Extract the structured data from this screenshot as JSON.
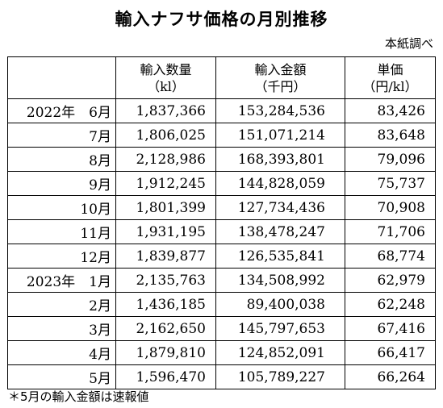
{
  "title": "輸入ナフサ価格の月別推移",
  "source": "本紙調べ",
  "columns": [
    {
      "name": "輸入数量",
      "unit": "（kl）"
    },
    {
      "name": "輸入金額",
      "unit": "（千円）"
    },
    {
      "name": "単価",
      "unit": "（円/kl）"
    }
  ],
  "rows": [
    {
      "period": "2022年　6月",
      "volume": "1,837,366",
      "amount": "153,284,536",
      "price": "83,426"
    },
    {
      "period": "7月",
      "volume": "1,806,025",
      "amount": "151,071,214",
      "price": "83,648"
    },
    {
      "period": "8月",
      "volume": "2,128,986",
      "amount": "168,393,801",
      "price": "79,096"
    },
    {
      "period": "9月",
      "volume": "1,912,245",
      "amount": "144,828,059",
      "price": "75,737"
    },
    {
      "period": "10月",
      "volume": "1,801,399",
      "amount": "127,734,436",
      "price": "70,908"
    },
    {
      "period": "11月",
      "volume": "1,931,195",
      "amount": "138,478,247",
      "price": "71,706"
    },
    {
      "period": "12月",
      "volume": "1,839,877",
      "amount": "126,535,841",
      "price": "68,774"
    },
    {
      "period": "2023年　1月",
      "volume": "2,135,763",
      "amount": "134,508,992",
      "price": "62,979"
    },
    {
      "period": "2月",
      "volume": "1,436,185",
      "amount": "89,400,038",
      "price": "62,248"
    },
    {
      "period": "3月",
      "volume": "2,162,650",
      "amount": "145,797,653",
      "price": "67,416"
    },
    {
      "period": "4月",
      "volume": "1,879,810",
      "amount": "124,852,091",
      "price": "66,417"
    },
    {
      "period": "5月",
      "volume": "1,596,470",
      "amount": "105,789,227",
      "price": "66,264"
    }
  ],
  "note": "＊5月の輸入金額は速報値"
}
